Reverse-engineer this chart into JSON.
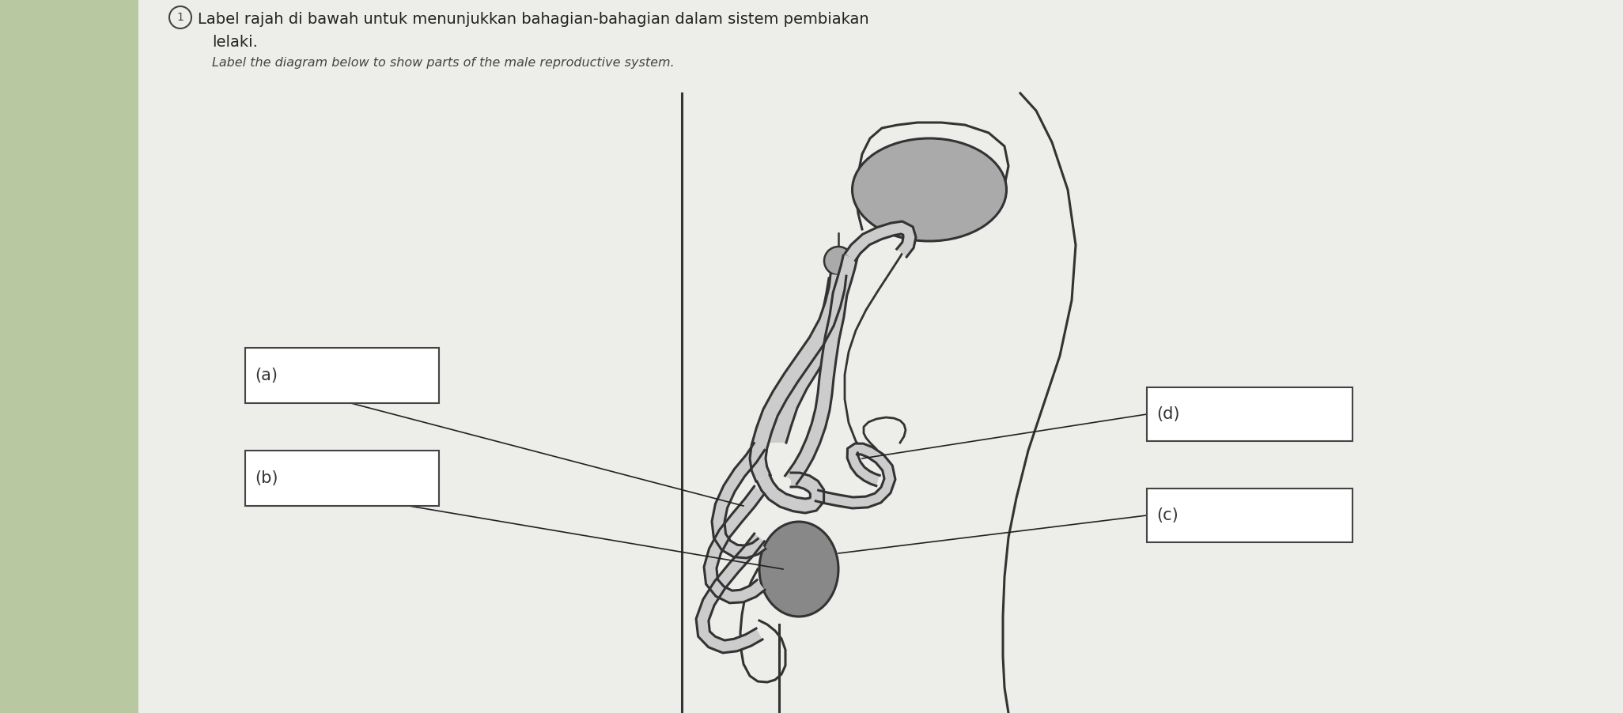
{
  "title_line1": "Label rajah di bawah untuk menunjukkan bahagian-bahagian dalam sistem pembiakan",
  "title_line2": "lelaki.",
  "subtitle": "Label the diagram below to show parts of the male reproductive system.",
  "bg_color": "#d8d8c8",
  "paper_color": "#ededea",
  "label_a": "(a)",
  "label_b": "(b)",
  "label_c": "(c)",
  "label_d": "(d)",
  "box_color": "#ffffff",
  "box_edge_color": "#444444",
  "line_color": "#222222",
  "diagram_color": "#333333",
  "diagram_lw": 2.2,
  "tube_fill": "#cccccc",
  "gray_fill": "#aaaaaa",
  "dark_gray_fill": "#888888",
  "prostate_fill": "#aaaaaa",
  "left_bg_color": "#b8c8a0"
}
